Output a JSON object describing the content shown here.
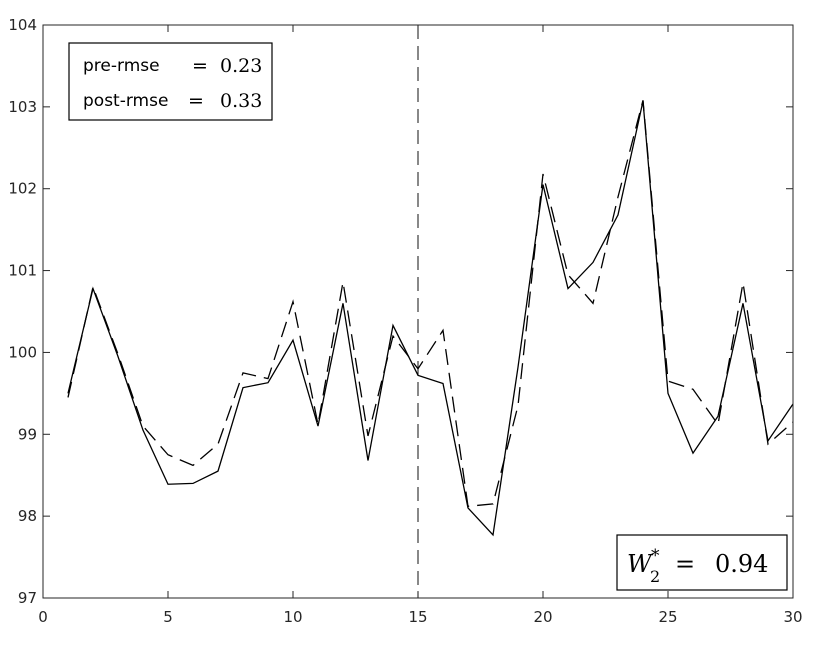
{
  "chart_data": {
    "type": "line",
    "title": "",
    "xlabel": "",
    "ylabel": "",
    "xlim": [
      0,
      30
    ],
    "ylim": [
      97,
      104
    ],
    "x_ticks": [
      0,
      5,
      10,
      15,
      20,
      25,
      30
    ],
    "y_ticks": [
      97,
      98,
      99,
      100,
      101,
      102,
      103,
      104
    ],
    "vertical_line_x": 15,
    "grid": false,
    "series": [
      {
        "style": "solid",
        "color": "#000000",
        "x": [
          1,
          2,
          3,
          4,
          5,
          6,
          7,
          8,
          9,
          10,
          11,
          12,
          13,
          14,
          15,
          16,
          17,
          18,
          19,
          20,
          21,
          22,
          23,
          24,
          25,
          26,
          27,
          28,
          29,
          30
        ],
        "y": [
          99.5,
          100.78,
          99.95,
          99.05,
          98.39,
          98.4,
          98.55,
          99.57,
          99.63,
          100.15,
          99.1,
          100.6,
          98.68,
          100.33,
          99.72,
          99.62,
          98.1,
          97.77,
          99.82,
          102.05,
          100.78,
          101.1,
          101.68,
          103.07,
          99.5,
          98.77,
          99.22,
          100.6,
          98.92,
          99.37
        ]
      },
      {
        "style": "dashed",
        "color": "#000000",
        "x": [
          1,
          2,
          3,
          4,
          5,
          6,
          7,
          8,
          9,
          10,
          11,
          12,
          13,
          14,
          15,
          16,
          17,
          18,
          19,
          20,
          21,
          22,
          23,
          24,
          25,
          26,
          27,
          28,
          29,
          30
        ],
        "y": [
          99.45,
          100.8,
          99.98,
          99.1,
          98.75,
          98.62,
          98.88,
          99.75,
          99.68,
          100.62,
          99.12,
          100.86,
          98.98,
          100.2,
          99.8,
          100.27,
          98.12,
          98.15,
          99.35,
          102.18,
          100.95,
          100.6,
          101.9,
          103.08,
          99.65,
          99.55,
          99.12,
          100.85,
          98.88,
          99.15
        ]
      }
    ]
  },
  "legend": {
    "rows": [
      {
        "label": "pre-rmse",
        "eq": "=",
        "value": "0.23"
      },
      {
        "label": "post-rmse",
        "eq": "=",
        "value": "0.33"
      }
    ],
    "placement": "top-left"
  },
  "annotation": {
    "symbol": "W",
    "subscript": "2",
    "superscript": "*",
    "eq": "=",
    "value": "0.94",
    "placement": "bottom-right"
  }
}
